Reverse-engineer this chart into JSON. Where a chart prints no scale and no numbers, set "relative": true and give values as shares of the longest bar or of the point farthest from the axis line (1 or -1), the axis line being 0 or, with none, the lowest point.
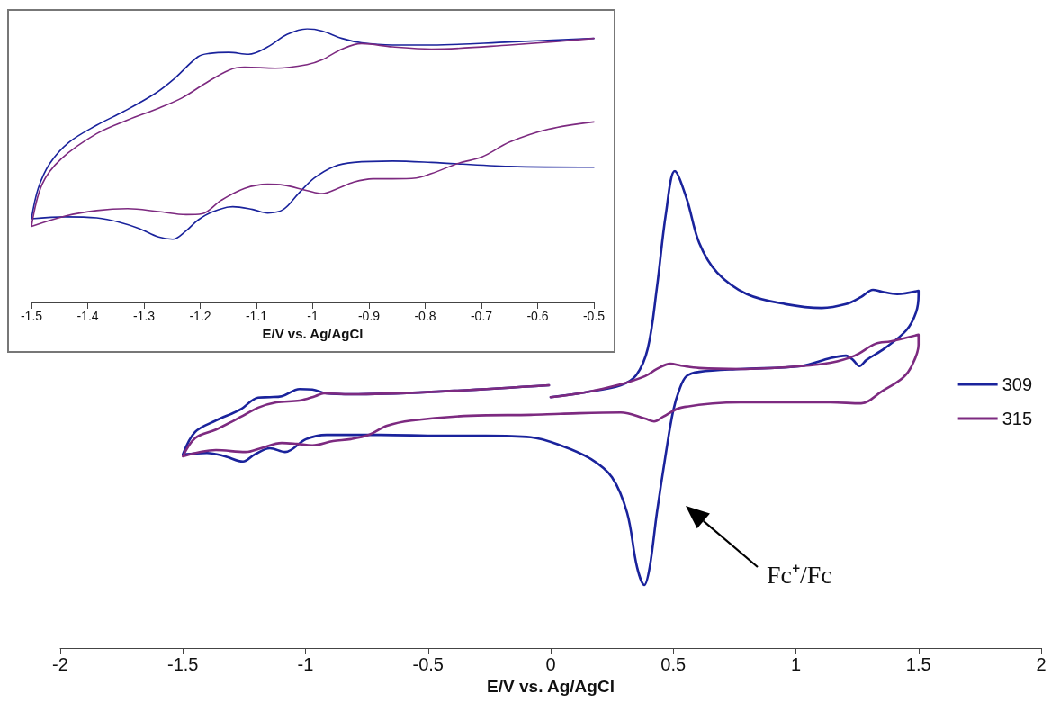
{
  "chart_data": [
    {
      "type": "line",
      "relative": true,
      "xlabel": "E/V vs. Ag/AgCl",
      "xlim": [
        -1.5,
        -0.5
      ],
      "xticks": [
        -1.5,
        -1.4,
        -1.3,
        -1.2,
        -1.1,
        -1,
        -0.9,
        -0.8,
        -0.7,
        -0.6,
        -0.5
      ],
      "series": [
        {
          "color": "#1a239c",
          "x": [
            -0.5,
            -0.65,
            -0.789,
            -0.858,
            -0.927,
            -0.962,
            -0.997,
            -1.024,
            -1.052,
            -1.08,
            -1.107,
            -1.142,
            -1.177,
            -1.204,
            -1.225,
            -1.249,
            -1.274,
            -1.308,
            -1.343,
            -1.384,
            -1.44,
            -1.5,
            -1.488,
            -1.467,
            -1.433,
            -1.384,
            -1.336,
            -1.28,
            -1.246,
            -1.204,
            -1.184,
            -1.149,
            -1.114,
            -1.08,
            -1.045,
            -1.01,
            -0.983,
            -0.948,
            -0.913,
            -0.858,
            -0.789,
            -0.65,
            -0.5
          ],
          "values": [
            0.494,
            0.497,
            0.512,
            0.517,
            0.512,
            0.497,
            0.455,
            0.401,
            0.34,
            0.327,
            0.34,
            0.35,
            0.332,
            0.301,
            0.262,
            0.231,
            0.239,
            0.27,
            0.293,
            0.309,
            0.313,
            0.306,
            0.417,
            0.509,
            0.586,
            0.648,
            0.698,
            0.764,
            0.818,
            0.898,
            0.91,
            0.914,
            0.907,
            0.934,
            0.98,
            1,
            0.992,
            0.965,
            0.949,
            0.941,
            0.941,
            0.952,
            0.965
          ]
        },
        {
          "color": "#7d2a80",
          "x": [
            -0.5,
            -0.581,
            -0.65,
            -0.699,
            -0.74,
            -0.789,
            -0.816,
            -0.858,
            -0.893,
            -0.927,
            -0.955,
            -0.983,
            -1.01,
            -1.052,
            -1.08,
            -1.121,
            -1.163,
            -1.197,
            -1.225,
            -1.274,
            -1.329,
            -1.384,
            -1.44,
            -1.5,
            -1.481,
            -1.447,
            -1.384,
            -1.329,
            -1.274,
            -1.232,
            -1.19,
            -1.149,
            -1.121,
            -1.066,
            -1.01,
            -0.983,
            -0.948,
            -0.913,
            -0.858,
            -0.789,
            -0.65,
            -0.5
          ],
          "values": [
            0.66,
            0.633,
            0.586,
            0.532,
            0.509,
            0.471,
            0.455,
            0.452,
            0.452,
            0.44,
            0.417,
            0.398,
            0.409,
            0.429,
            0.432,
            0.417,
            0.373,
            0.324,
            0.321,
            0.332,
            0.343,
            0.336,
            0.316,
            0.278,
            0.432,
            0.525,
            0.617,
            0.667,
            0.71,
            0.748,
            0.802,
            0.849,
            0.86,
            0.856,
            0.869,
            0.887,
            0.926,
            0.946,
            0.934,
            0.926,
            0.941,
            0.965
          ]
        }
      ]
    },
    {
      "type": "line",
      "relative": true,
      "xlabel": "E/V vs. Ag/AgCl",
      "xlim": [
        -2,
        2
      ],
      "xticks": [
        -2,
        -1.5,
        -1,
        -0.5,
        0,
        0.5,
        1,
        1.5,
        2
      ],
      "legend": "right",
      "annotations": [
        "Fc⁺/Fc"
      ],
      "series": [
        {
          "name": "309",
          "color": "#1a239c",
          "x": [
            0,
            0.139,
            0.286,
            0.349,
            0.396,
            0.433,
            0.47,
            0.506,
            0.554,
            0.606,
            0.679,
            0.8,
            0.958,
            1.105,
            1.204,
            1.266,
            1.314,
            1.35,
            1.413,
            1.5,
            1.5,
            1.49,
            1.45,
            1.361,
            1.288,
            1.259,
            1.233,
            1.204,
            1.141,
            1.02,
            0.774,
            0.606,
            0.554,
            0.525,
            0.499,
            0.47,
            0.433,
            0.404,
            0.382,
            0.352,
            0.312,
            0.25,
            0.165,
            0.04,
            -0.081,
            -0.264,
            -0.448,
            -0.694,
            -0.914,
            -0.998,
            -1.083,
            -1.145,
            -1.207,
            -1.255,
            -1.328,
            -1.402,
            -1.5,
            -1.45,
            -1.365,
            -1.266,
            -1.193,
            -1.145,
            -1.097,
            -1.024,
            -0.972,
            -0.914,
            -0.815,
            -0.448,
            -0.007
          ],
          "values": [
            0.526,
            0.536,
            0.551,
            0.572,
            0.628,
            0.755,
            0.911,
            1,
            0.943,
            0.849,
            0.787,
            0.742,
            0.721,
            0.713,
            0.721,
            0.736,
            0.751,
            0.747,
            0.742,
            0.749,
            0.74,
            0.704,
            0.666,
            0.628,
            0.604,
            0.591,
            0.604,
            0.613,
            0.608,
            0.591,
            0.585,
            0.579,
            0.57,
            0.542,
            0.496,
            0.409,
            0.283,
            0.17,
            0.132,
            0.17,
            0.283,
            0.358,
            0.396,
            0.425,
            0.442,
            0.445,
            0.445,
            0.447,
            0.447,
            0.438,
            0.411,
            0.419,
            0.406,
            0.391,
            0.402,
            0.409,
            0.406,
            0.453,
            0.477,
            0.5,
            0.525,
            0.526,
            0.528,
            0.543,
            0.542,
            0.534,
            0.532,
            0.538,
            0.551
          ]
        },
        {
          "name": "315",
          "color": "#7d2a80",
          "x": [
            0,
            0.139,
            0.286,
            0.385,
            0.433,
            0.488,
            0.532,
            0.606,
            0.774,
            1.02,
            1.141,
            1.24,
            1.325,
            1.387,
            1.5,
            1.5,
            1.472,
            1.435,
            1.35,
            1.266,
            1.141,
            0.774,
            0.532,
            0.459,
            0.422,
            0.385,
            0.286,
            0.04,
            -0.081,
            -0.327,
            -0.569,
            -0.668,
            -0.741,
            -0.815,
            -0.888,
            -0.972,
            -1.035,
            -1.097,
            -1.182,
            -1.244,
            -1.365,
            -1.5,
            -1.45,
            -1.365,
            -1.255,
            -1.193,
            -1.119,
            -1.024,
            -0.961,
            -0.925,
            -0.815,
            -0.448,
            -0.007
          ],
          "values": [
            0.526,
            0.536,
            0.553,
            0.57,
            0.585,
            0.596,
            0.592,
            0.587,
            0.585,
            0.591,
            0.598,
            0.613,
            0.638,
            0.643,
            0.657,
            0.636,
            0.591,
            0.566,
            0.538,
            0.513,
            0.515,
            0.515,
            0.504,
            0.485,
            0.475,
            0.481,
            0.494,
            0.491,
            0.489,
            0.487,
            0.477,
            0.466,
            0.447,
            0.438,
            0.434,
            0.425,
            0.428,
            0.43,
            0.419,
            0.411,
            0.415,
            0.402,
            0.44,
            0.458,
            0.487,
            0.504,
            0.515,
            0.519,
            0.528,
            0.534,
            0.532,
            0.538,
            0.551
          ]
        }
      ]
    }
  ]
}
